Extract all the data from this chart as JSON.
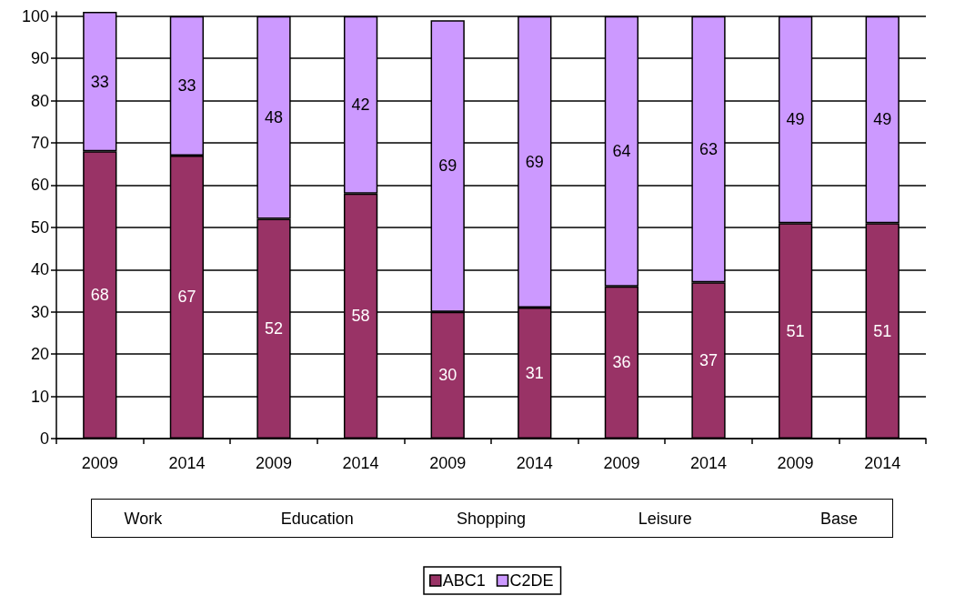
{
  "chart_data": {
    "type": "bar",
    "stacked": true,
    "categories": [
      "2009",
      "2014",
      "2009",
      "2014",
      "2009",
      "2014",
      "2009",
      "2014",
      "2009",
      "2014"
    ],
    "series": [
      {
        "name": "ABC1",
        "color": "#993366",
        "values": [
          68,
          67,
          52,
          58,
          30,
          31,
          36,
          37,
          51,
          51
        ]
      },
      {
        "name": "C2DE",
        "color": "#cc99ff",
        "values": [
          33,
          33,
          48,
          42,
          69,
          69,
          64,
          63,
          49,
          49
        ]
      }
    ],
    "ylim": [
      0,
      101
    ],
    "yticks": [
      0,
      10,
      20,
      30,
      40,
      50,
      60,
      70,
      80,
      90,
      100
    ],
    "grid": "y",
    "legend": "bottom",
    "data_labels": true,
    "annotations": [
      "Work",
      "Education",
      "Shopping",
      "Leisure",
      "Base"
    ]
  }
}
